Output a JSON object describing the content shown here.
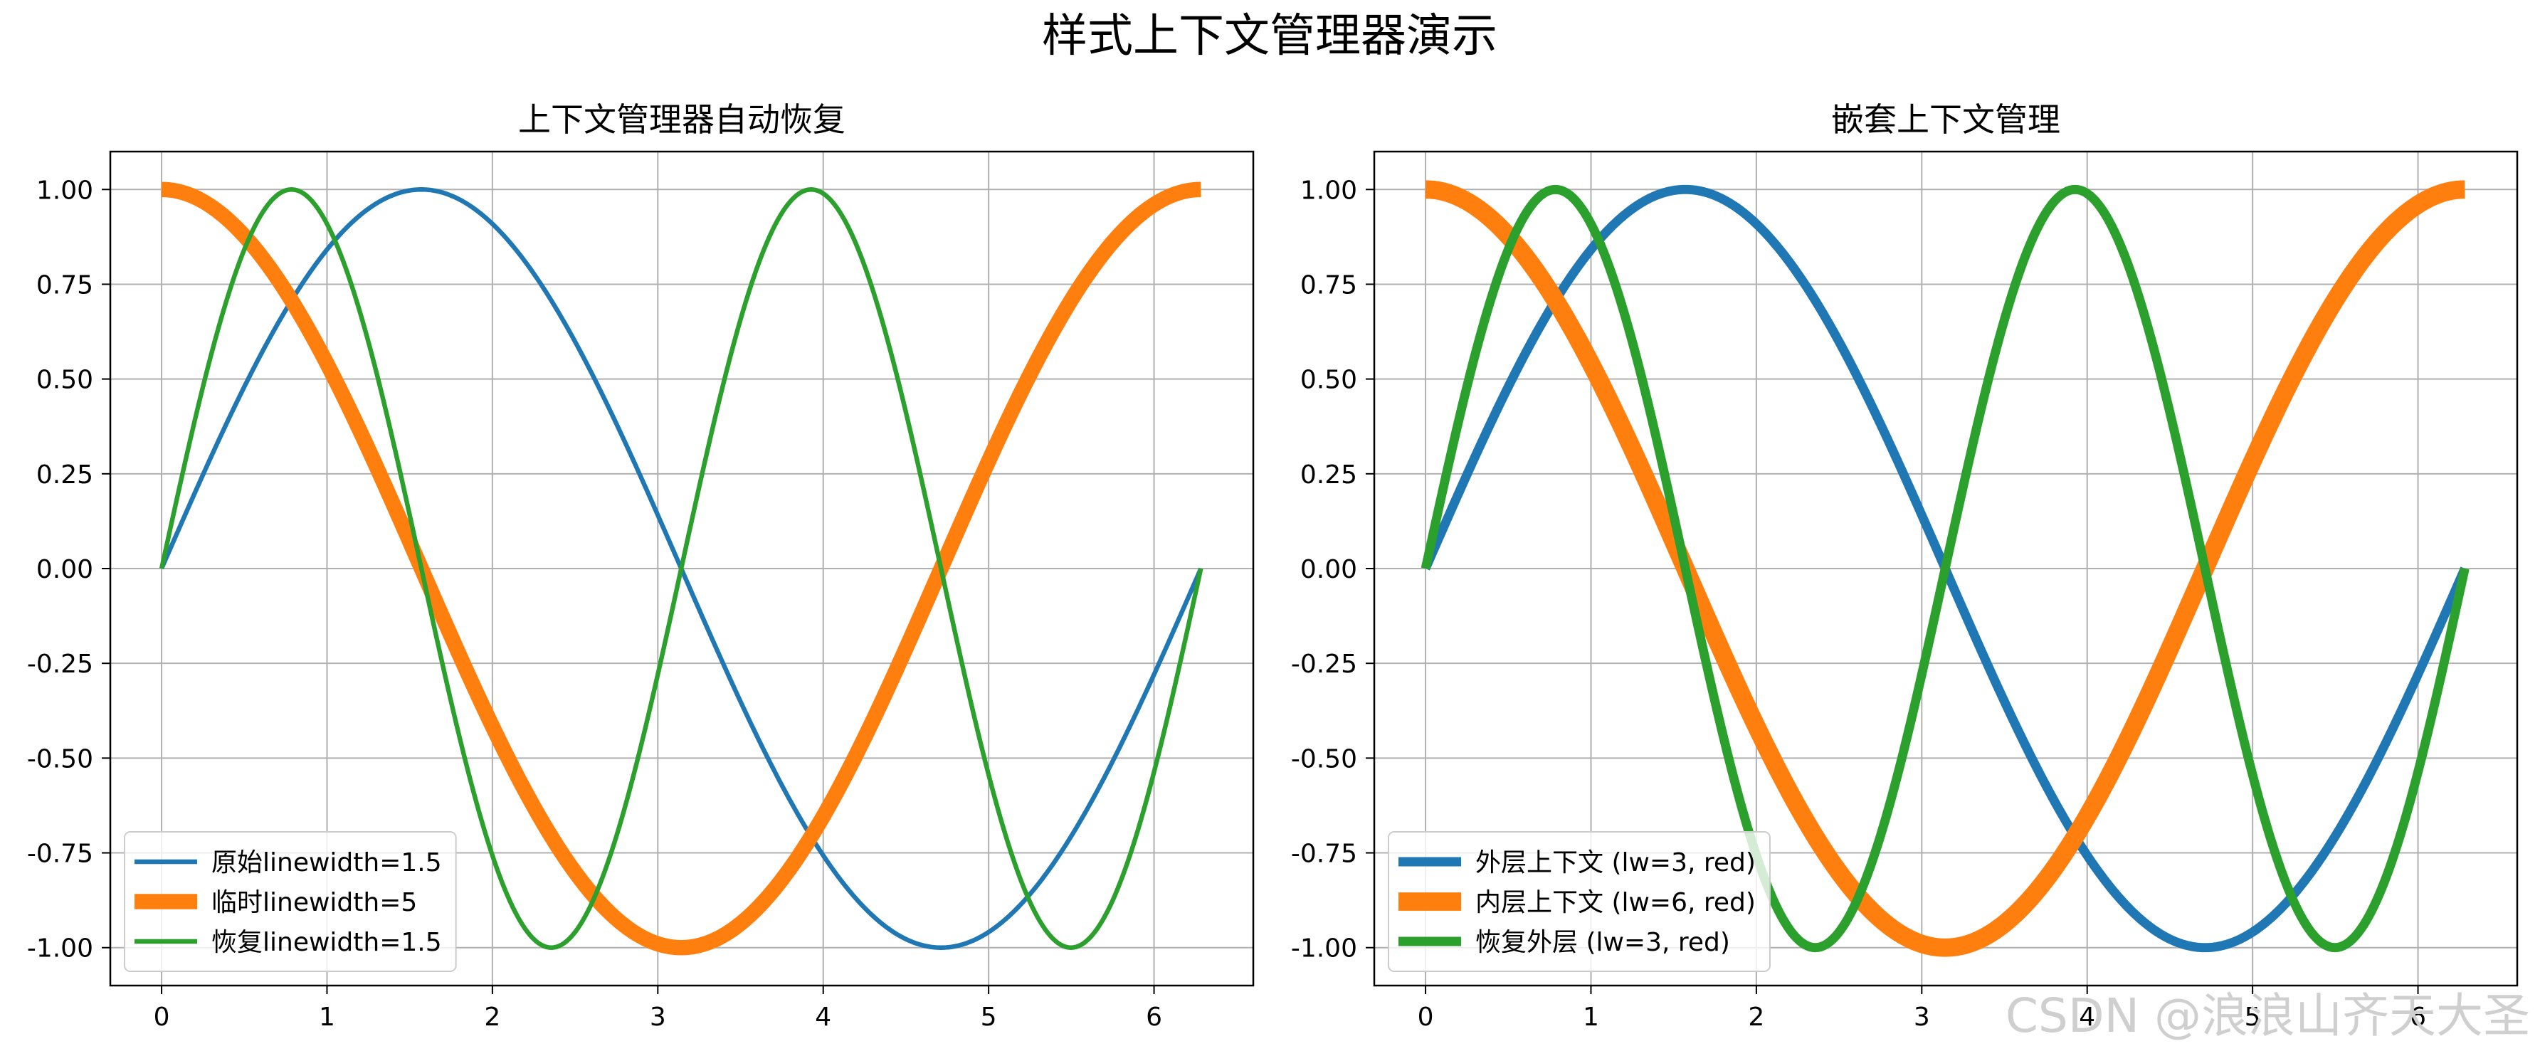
{
  "figure": {
    "suptitle": "样式上下文管理器演示",
    "watermark": "CSDN @浪浪山齐天大圣"
  },
  "chart_data": [
    {
      "type": "line",
      "title": "上下文管理器自动恢复",
      "xlabel": "",
      "ylabel": "",
      "xlim": [
        -0.31,
        6.6
      ],
      "ylim": [
        -1.1,
        1.1
      ],
      "xticks": [
        0,
        1,
        2,
        3,
        4,
        5,
        6
      ],
      "xtick_labels": [
        "0",
        "1",
        "2",
        "3",
        "4",
        "5",
        "6"
      ],
      "yticks": [
        1.0,
        0.75,
        0.5,
        0.25,
        0.0,
        -0.25,
        -0.5,
        -0.75,
        -1.0
      ],
      "ytick_labels": [
        "1.00",
        "0.75",
        "0.50",
        "0.25",
        "0.00",
        "-0.25",
        "-0.50",
        "-0.75",
        "-1.00"
      ],
      "grid": true,
      "legend_position": "lower-left",
      "x_range": [
        0,
        6.2832
      ],
      "series": [
        {
          "name": "原始linewidth=1.5",
          "function": "sin(x)",
          "color": "#1f77b4",
          "linewidth": 1.5
        },
        {
          "name": "临时linewidth=5",
          "function": "cos(x)",
          "color": "#ff7f0e",
          "linewidth": 5
        },
        {
          "name": "恢复linewidth=1.5",
          "function": "sin(2x)",
          "color": "#2ca02c",
          "linewidth": 1.5
        }
      ]
    },
    {
      "type": "line",
      "title": "嵌套上下文管理",
      "xlabel": "",
      "ylabel": "",
      "xlim": [
        -0.31,
        6.6
      ],
      "ylim": [
        -1.1,
        1.1
      ],
      "xticks": [
        0,
        1,
        2,
        3,
        4,
        5,
        6
      ],
      "xtick_labels": [
        "0",
        "1",
        "2",
        "3",
        "4",
        "5",
        "6"
      ],
      "yticks": [
        1.0,
        0.75,
        0.5,
        0.25,
        0.0,
        -0.25,
        -0.5,
        -0.75,
        -1.0
      ],
      "ytick_labels": [
        "1.00",
        "0.75",
        "0.50",
        "0.25",
        "0.00",
        "-0.25",
        "-0.50",
        "-0.75",
        "-1.00"
      ],
      "grid": true,
      "legend_position": "lower-left",
      "x_range": [
        0,
        6.2832
      ],
      "series": [
        {
          "name": "外层上下文 (lw=3, red)",
          "function": "sin(x)",
          "color": "#1f77b4",
          "linewidth": 3
        },
        {
          "name": "内层上下文 (lw=6, red)",
          "function": "cos(x)",
          "color": "#ff7f0e",
          "linewidth": 6
        },
        {
          "name": "恢复外层 (lw=3, red)",
          "function": "sin(2x)",
          "color": "#2ca02c",
          "linewidth": 3
        }
      ]
    }
  ]
}
